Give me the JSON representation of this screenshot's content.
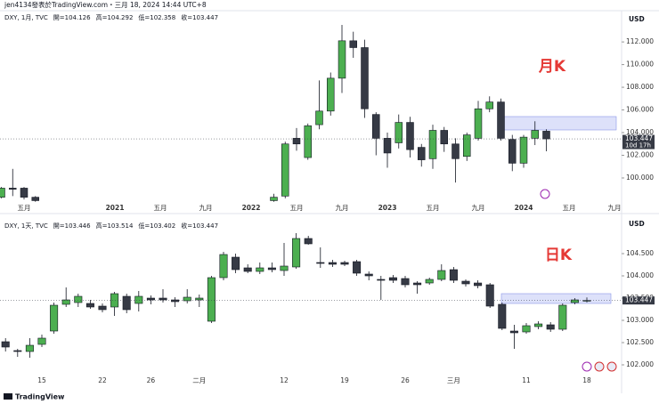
{
  "header": "jen4134發表於TradingView.com・三月 18, 2024 14:44 UTC+8",
  "footer": "TradingView",
  "chart_data": [
    {
      "type": "candlestick",
      "annotation": "月K",
      "currency": "USD",
      "legend": [
        "DXY, 1月, TVC",
        "開=104.126",
        "高=104.292",
        "低=102.358",
        "收=103.447"
      ],
      "categories": [
        null,
        null,
        "五月",
        null,
        null,
        null,
        null,
        null,
        null,
        null,
        "2021",
        null,
        null,
        null,
        "五月",
        null,
        null,
        null,
        "九月",
        null,
        null,
        null,
        "2022",
        null,
        null,
        null,
        "五月",
        null,
        null,
        null,
        "九月",
        null,
        null,
        null,
        "2023",
        null,
        null,
        null,
        "五月",
        null,
        null,
        null,
        "九月",
        null,
        null,
        null,
        "2024",
        null,
        null,
        null,
        "五月",
        null,
        null,
        null,
        "九月",
        null
      ],
      "open": [
        98.3,
        99.1,
        99.1,
        98.3,
        null,
        null,
        null,
        null,
        null,
        null,
        null,
        null,
        null,
        null,
        null,
        null,
        null,
        null,
        null,
        null,
        null,
        null,
        null,
        null,
        98.0,
        98.4,
        103.5,
        101.8,
        104.7,
        105.9,
        108.8,
        112.1,
        111.5,
        105.6,
        103.5,
        103.1,
        104.9,
        102.7,
        101.7,
        104.2,
        103.0,
        101.9,
        103.5,
        106.1,
        106.7,
        103.4,
        101.3,
        103.5,
        104.126,
        null,
        null,
        null,
        null,
        null,
        null,
        null
      ],
      "high": [
        99.2,
        100.8,
        99.2,
        98.4,
        null,
        null,
        null,
        null,
        null,
        null,
        null,
        null,
        null,
        null,
        null,
        null,
        null,
        null,
        null,
        null,
        null,
        null,
        null,
        null,
        98.6,
        103.2,
        104.4,
        104.8,
        108.6,
        109.3,
        113.5,
        112.9,
        112.2,
        105.8,
        104.0,
        105.6,
        105.4,
        103.0,
        104.7,
        104.5,
        103.5,
        104.0,
        106.8,
        107.2,
        107.0,
        103.8,
        103.8,
        105.0,
        104.292,
        null,
        null,
        null,
        null,
        null,
        null,
        null
      ],
      "low": [
        98.2,
        98.4,
        98.1,
        97.9,
        null,
        null,
        null,
        null,
        null,
        null,
        null,
        null,
        null,
        null,
        null,
        null,
        null,
        null,
        null,
        null,
        null,
        null,
        null,
        null,
        97.9,
        98.2,
        102.4,
        101.6,
        104.3,
        105.5,
        107.5,
        110.6,
        105.3,
        102.0,
        100.9,
        102.6,
        101.8,
        101.0,
        100.8,
        102.3,
        99.6,
        101.5,
        103.3,
        105.8,
        103.3,
        100.6,
        100.9,
        102.9,
        102.358,
        null,
        null,
        null,
        null,
        null,
        null,
        null
      ],
      "close": [
        99.1,
        99.0,
        98.3,
        98.0,
        null,
        null,
        null,
        null,
        null,
        null,
        null,
        null,
        null,
        null,
        null,
        null,
        null,
        null,
        null,
        null,
        null,
        null,
        null,
        null,
        98.3,
        103.0,
        103.0,
        104.6,
        105.9,
        108.8,
        112.1,
        111.5,
        106.1,
        103.5,
        102.2,
        104.9,
        102.5,
        101.6,
        104.2,
        103.0,
        101.7,
        103.8,
        106.1,
        106.7,
        103.5,
        101.3,
        103.6,
        104.2,
        103.447,
        null,
        null,
        null,
        null,
        null,
        null,
        null
      ],
      "last_price": 103.447,
      "countdown": "10d 17h",
      "ylim": [
        97.8,
        114.6
      ],
      "yticks": [
        {
          "value": 100,
          "label": "100.000"
        },
        {
          "value": 102,
          "label": "102.000"
        },
        {
          "value": 104,
          "label": "104.000"
        },
        {
          "value": 106,
          "label": "106.000"
        },
        {
          "value": 108,
          "label": "108.000"
        },
        {
          "value": 110,
          "label": "110.000"
        },
        {
          "value": 112,
          "label": "112.000"
        }
      ],
      "up_color": "#4caf50",
      "down_color": "#363a45"
    },
    {
      "type": "candlestick",
      "annotation": "日K",
      "currency": "USD",
      "legend": [
        "DXY, 1天, TVC",
        "開=103.446",
        "高=103.514",
        "低=103.402",
        "收=103.447"
      ],
      "categories": [
        null,
        null,
        null,
        "15",
        null,
        null,
        null,
        null,
        "22",
        null,
        null,
        null,
        "26",
        null,
        null,
        null,
        "二月",
        null,
        null,
        null,
        null,
        null,
        null,
        "12",
        null,
        null,
        null,
        null,
        "19",
        null,
        null,
        null,
        null,
        "26",
        null,
        null,
        null,
        "三月",
        null,
        null,
        null,
        null,
        null,
        "11",
        null,
        null,
        null,
        null,
        "18",
        null,
        null
      ],
      "open": [
        102.52,
        102.32,
        102.3,
        102.46,
        102.76,
        103.36,
        103.4,
        103.38,
        103.32,
        103.3,
        103.54,
        103.38,
        103.5,
        103.5,
        103.46,
        103.44,
        103.46,
        102.98,
        103.96,
        104.42,
        104.18,
        104.1,
        104.18,
        104.12,
        104.2,
        104.84,
        104.3,
        104.3,
        104.3,
        104.32,
        104.04,
        103.92,
        103.96,
        103.94,
        103.84,
        103.84,
        103.92,
        104.14,
        103.88,
        103.84,
        103.8,
        103.36,
        102.76,
        102.74,
        102.86,
        102.9,
        102.8,
        103.4,
        103.446,
        null,
        null
      ],
      "high": [
        102.6,
        102.36,
        102.6,
        102.68,
        103.4,
        103.74,
        103.6,
        103.46,
        103.38,
        103.64,
        103.6,
        103.66,
        103.56,
        103.7,
        103.52,
        103.7,
        103.58,
        104.0,
        104.54,
        104.5,
        104.26,
        104.3,
        104.3,
        104.74,
        104.96,
        104.9,
        104.64,
        104.36,
        104.34,
        104.36,
        104.1,
        104.0,
        104.02,
        104.0,
        103.88,
        103.96,
        104.26,
        104.2,
        103.92,
        103.9,
        103.84,
        103.4,
        102.9,
        102.94,
        102.98,
        102.96,
        103.38,
        103.5,
        103.514,
        null,
        null
      ],
      "low": [
        102.3,
        102.18,
        102.16,
        102.4,
        102.7,
        103.3,
        103.3,
        103.26,
        103.18,
        103.1,
        103.16,
        103.2,
        103.36,
        103.4,
        103.3,
        103.38,
        103.3,
        102.94,
        103.9,
        104.06,
        104.06,
        104.04,
        104.08,
        104.0,
        104.16,
        104.7,
        104.18,
        104.2,
        104.22,
        104.0,
        103.9,
        103.46,
        103.84,
        103.74,
        103.6,
        103.8,
        103.88,
        103.84,
        103.76,
        103.72,
        103.28,
        102.78,
        102.36,
        102.7,
        102.8,
        102.74,
        102.76,
        103.36,
        103.402,
        null,
        null
      ],
      "close": [
        102.4,
        102.3,
        102.44,
        102.6,
        103.34,
        103.46,
        103.54,
        103.3,
        103.24,
        103.6,
        103.24,
        103.54,
        103.46,
        103.46,
        103.42,
        103.52,
        103.5,
        103.96,
        104.48,
        104.14,
        104.1,
        104.18,
        104.14,
        104.22,
        104.84,
        104.72,
        104.28,
        104.26,
        104.26,
        104.06,
        104.0,
        103.9,
        103.9,
        103.8,
        103.8,
        103.92,
        104.12,
        103.9,
        103.82,
        103.78,
        103.32,
        102.82,
        102.72,
        102.88,
        102.92,
        102.8,
        103.34,
        103.46,
        103.447,
        null,
        null
      ],
      "last_price": 103.447,
      "ylim": [
        101.76,
        105.34
      ],
      "yticks": [
        {
          "value": 102,
          "label": "102.000"
        },
        {
          "value": 102.5,
          "label": "102.500"
        },
        {
          "value": 103,
          "label": "103.000"
        },
        {
          "value": 103.5,
          "label": "103.500"
        },
        {
          "value": 104,
          "label": "104.000"
        },
        {
          "value": 104.5,
          "label": "104.500"
        }
      ],
      "up_color": "#4caf50",
      "down_color": "#363a45"
    }
  ]
}
